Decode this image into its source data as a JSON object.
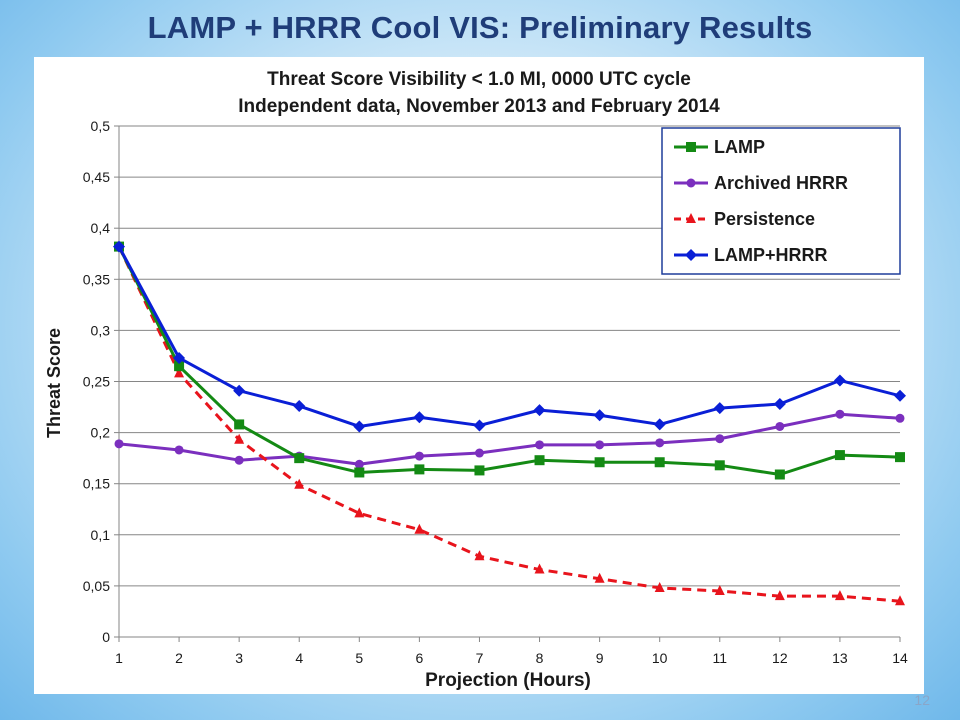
{
  "slide": {
    "title": "LAMP + HRRR Cool VIS: Preliminary Results",
    "page_number": "12"
  },
  "chart_data": {
    "type": "line",
    "title": "Threat Score Visibility < 1.0 MI, 0000 UTC cycle",
    "subtitle": "Independent data, November 2013 and February 2014",
    "xlabel": "Projection (Hours)",
    "ylabel": "Threat Score",
    "x": [
      1,
      2,
      3,
      4,
      5,
      6,
      7,
      8,
      9,
      10,
      11,
      12,
      13,
      14
    ],
    "xlim": [
      1,
      14
    ],
    "ylim": [
      0,
      0.5
    ],
    "ytick_step": 0.05,
    "yticks": [
      "0",
      "0,05",
      "0,1",
      "0,15",
      "0,2",
      "0,25",
      "0,3",
      "0,35",
      "0,4",
      "0,45",
      "0,5"
    ],
    "xticks": [
      "1",
      "2",
      "3",
      "4",
      "5",
      "6",
      "7",
      "8",
      "9",
      "10",
      "11",
      "12",
      "13",
      "14"
    ],
    "grid": "horizontal",
    "legend_position": "top-right",
    "series": [
      {
        "name": "LAMP",
        "color": "#148a14",
        "marker": "square",
        "dash": "solid",
        "values": [
          0.382,
          0.265,
          0.208,
          0.175,
          0.161,
          0.164,
          0.163,
          0.173,
          0.171,
          0.171,
          0.168,
          0.159,
          0.178,
          0.176
        ]
      },
      {
        "name": "Archived HRRR",
        "color": "#7b2fbe",
        "marker": "circle",
        "dash": "solid",
        "values": [
          0.189,
          0.183,
          0.173,
          0.177,
          0.169,
          0.177,
          0.18,
          0.188,
          0.188,
          0.19,
          0.194,
          0.206,
          0.218,
          0.214
        ]
      },
      {
        "name": "Persistence",
        "color": "#e8141c",
        "marker": "triangle",
        "dash": "dashed",
        "values": [
          0.382,
          0.258,
          0.193,
          0.149,
          0.121,
          0.105,
          0.079,
          0.066,
          0.057,
          0.048,
          0.045,
          0.04,
          0.04,
          0.035
        ]
      },
      {
        "name": "LAMP+HRRR",
        "color": "#0a1fd6",
        "marker": "diamond",
        "dash": "solid",
        "values": [
          0.382,
          0.273,
          0.241,
          0.226,
          0.206,
          0.215,
          0.207,
          0.222,
          0.217,
          0.208,
          0.224,
          0.228,
          0.251,
          0.236
        ]
      }
    ]
  }
}
